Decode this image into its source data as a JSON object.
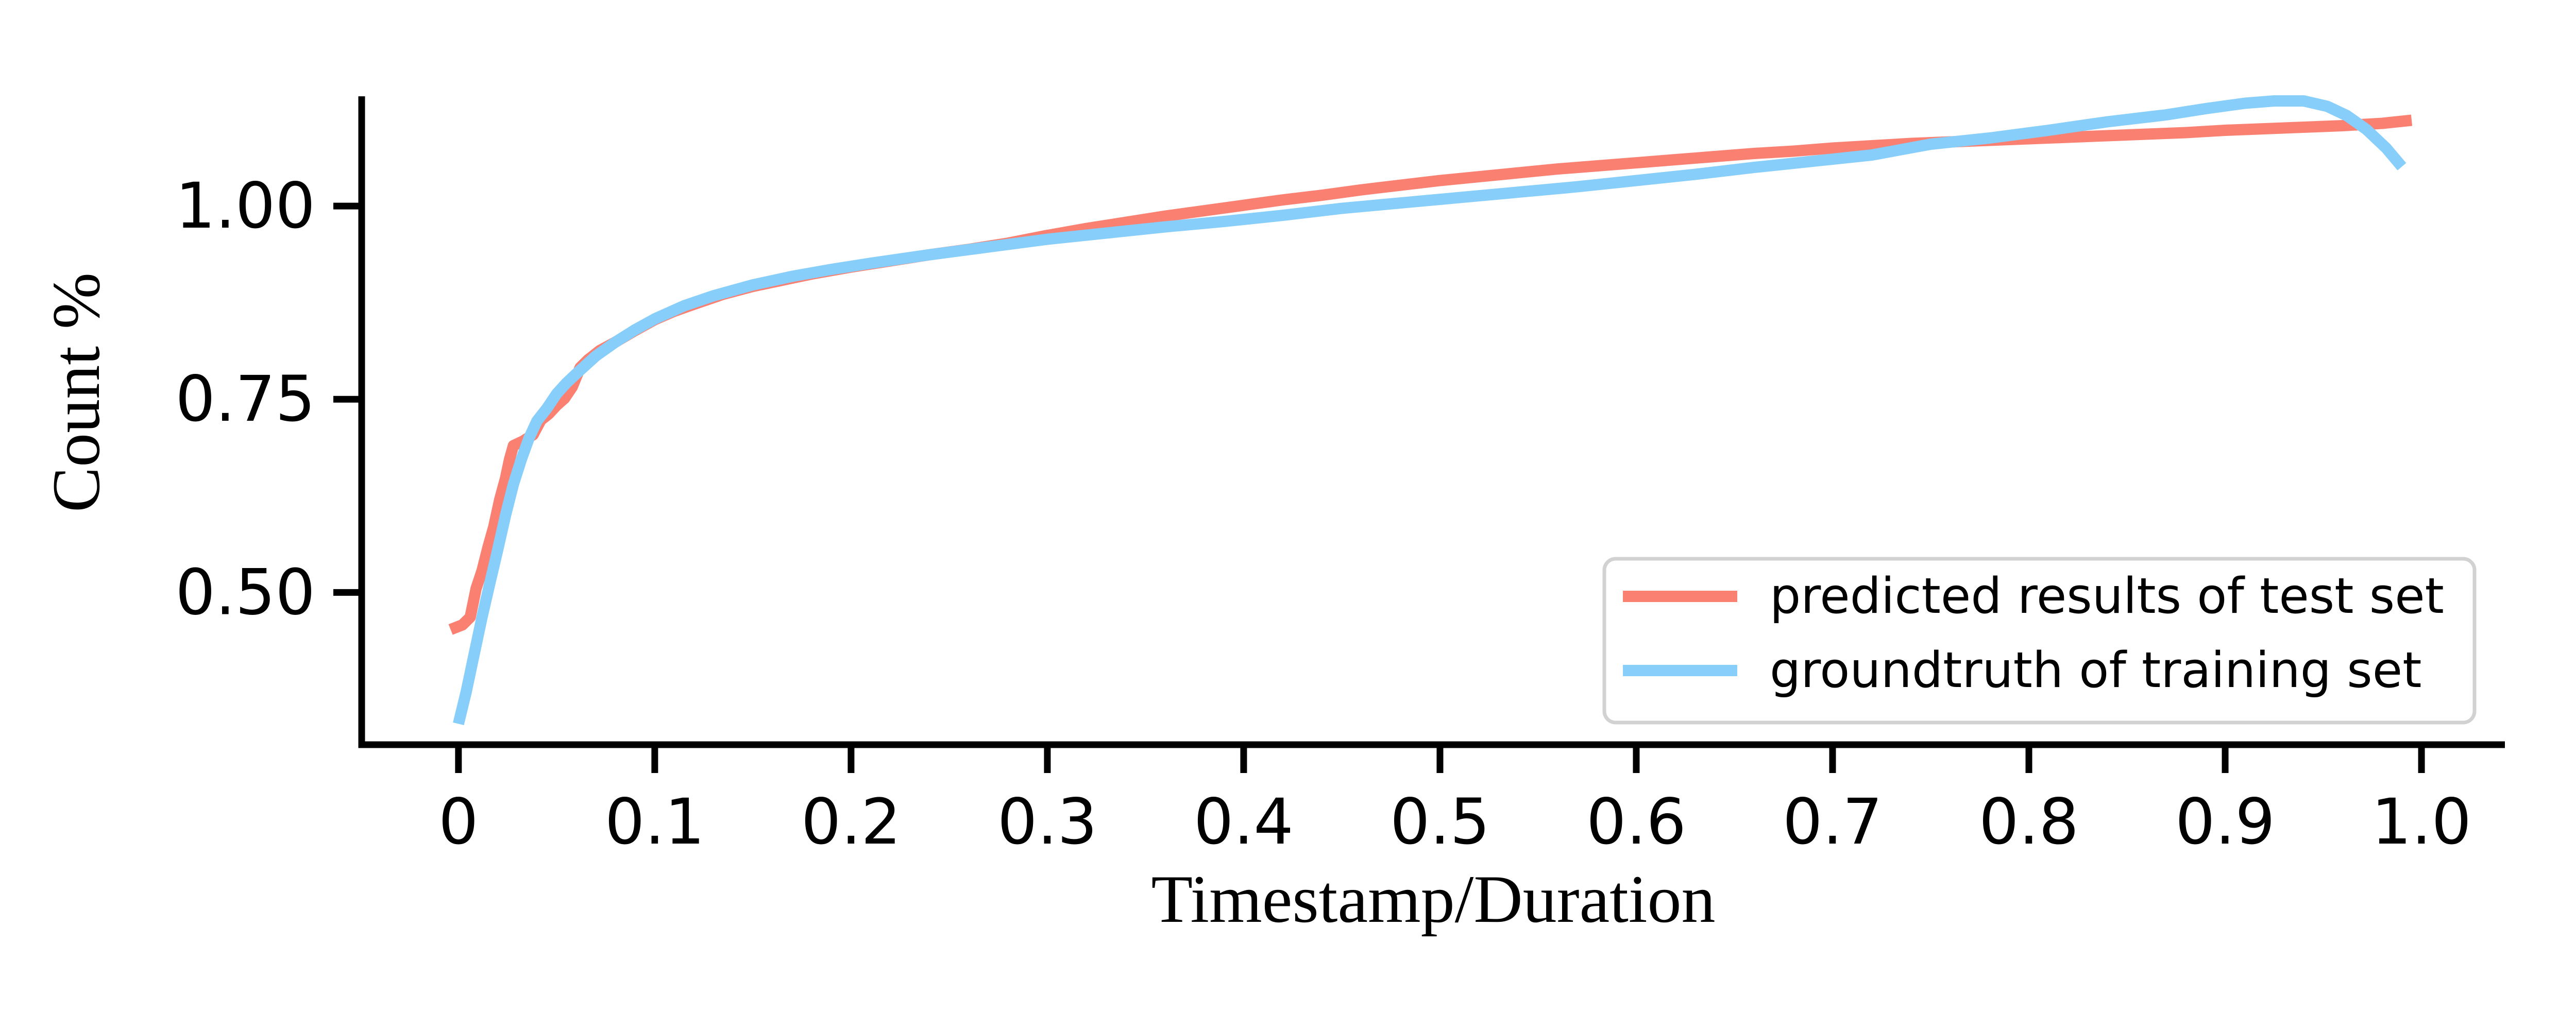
{
  "chart_data": {
    "type": "line",
    "title": "",
    "xlabel": "Timestamp/Duration",
    "ylabel": "Count %",
    "xlim": [
      -0.0493,
      1.0425
    ],
    "ylim": [
      0.303,
      1.142
    ],
    "grid": false,
    "legend_position": "lower right",
    "x_ticks": [
      0,
      0.1,
      0.2,
      0.3,
      0.4,
      0.5,
      0.6,
      0.7,
      0.8,
      0.9,
      1.0
    ],
    "x_tick_labels": [
      "0",
      "0.1",
      "0.2",
      "0.3",
      "0.4",
      "0.5",
      "0.6",
      "0.7",
      "0.8",
      "0.9",
      "1.0"
    ],
    "y_ticks": [
      0.5,
      0.75,
      1.0
    ],
    "y_tick_labels": [
      "0.50",
      "0.75",
      "1.00"
    ],
    "axis_color": "#000000",
    "legend_border_color": "#d2d2d2",
    "legend_background": "#ffffff",
    "series": [
      {
        "name": "predicted results of test set",
        "color": "#fa8072",
        "points": [
          [
            -0.004,
            0.452
          ],
          [
            0.002,
            0.458
          ],
          [
            0.006,
            0.468
          ],
          [
            0.009,
            0.505
          ],
          [
            0.012,
            0.528
          ],
          [
            0.015,
            0.558
          ],
          [
            0.018,
            0.585
          ],
          [
            0.021,
            0.62
          ],
          [
            0.024,
            0.648
          ],
          [
            0.026,
            0.672
          ],
          [
            0.028,
            0.69
          ],
          [
            0.033,
            0.696
          ],
          [
            0.038,
            0.704
          ],
          [
            0.042,
            0.723
          ],
          [
            0.046,
            0.731
          ],
          [
            0.05,
            0.742
          ],
          [
            0.054,
            0.751
          ],
          [
            0.058,
            0.766
          ],
          [
            0.062,
            0.791
          ],
          [
            0.066,
            0.801
          ],
          [
            0.072,
            0.813
          ],
          [
            0.08,
            0.824
          ],
          [
            0.09,
            0.839
          ],
          [
            0.1,
            0.853
          ],
          [
            0.11,
            0.864
          ],
          [
            0.12,
            0.873
          ],
          [
            0.135,
            0.886
          ],
          [
            0.15,
            0.896
          ],
          [
            0.165,
            0.904
          ],
          [
            0.18,
            0.912
          ],
          [
            0.2,
            0.921
          ],
          [
            0.22,
            0.929
          ],
          [
            0.24,
            0.937
          ],
          [
            0.26,
            0.944
          ],
          [
            0.28,
            0.952
          ],
          [
            0.3,
            0.962
          ],
          [
            0.32,
            0.971
          ],
          [
            0.34,
            0.979
          ],
          [
            0.36,
            0.987
          ],
          [
            0.38,
            0.994
          ],
          [
            0.4,
            1.001
          ],
          [
            0.42,
            1.008
          ],
          [
            0.44,
            1.014
          ],
          [
            0.46,
            1.021
          ],
          [
            0.48,
            1.027
          ],
          [
            0.5,
            1.033
          ],
          [
            0.52,
            1.038
          ],
          [
            0.54,
            1.043
          ],
          [
            0.56,
            1.048
          ],
          [
            0.58,
            1.052
          ],
          [
            0.6,
            1.056
          ],
          [
            0.62,
            1.06
          ],
          [
            0.64,
            1.064
          ],
          [
            0.66,
            1.068
          ],
          [
            0.68,
            1.071
          ],
          [
            0.7,
            1.075
          ],
          [
            0.72,
            1.078
          ],
          [
            0.74,
            1.081
          ],
          [
            0.76,
            1.083
          ],
          [
            0.78,
            1.085
          ],
          [
            0.8,
            1.087
          ],
          [
            0.82,
            1.089
          ],
          [
            0.84,
            1.091
          ],
          [
            0.86,
            1.093
          ],
          [
            0.88,
            1.095
          ],
          [
            0.9,
            1.098
          ],
          [
            0.92,
            1.1
          ],
          [
            0.94,
            1.102
          ],
          [
            0.96,
            1.104
          ],
          [
            0.98,
            1.107
          ],
          [
            0.995,
            1.111
          ]
        ]
      },
      {
        "name": "groundtruth of training set",
        "color": "#87cefa",
        "points": [
          [
            0.0,
            0.33
          ],
          [
            0.004,
            0.372
          ],
          [
            0.008,
            0.42
          ],
          [
            0.012,
            0.468
          ],
          [
            0.016,
            0.512
          ],
          [
            0.02,
            0.555
          ],
          [
            0.024,
            0.6
          ],
          [
            0.028,
            0.64
          ],
          [
            0.032,
            0.672
          ],
          [
            0.036,
            0.7
          ],
          [
            0.04,
            0.722
          ],
          [
            0.045,
            0.738
          ],
          [
            0.05,
            0.757
          ],
          [
            0.055,
            0.771
          ],
          [
            0.06,
            0.783
          ],
          [
            0.07,
            0.806
          ],
          [
            0.08,
            0.824
          ],
          [
            0.09,
            0.84
          ],
          [
            0.1,
            0.854
          ],
          [
            0.115,
            0.871
          ],
          [
            0.13,
            0.884
          ],
          [
            0.15,
            0.898
          ],
          [
            0.17,
            0.909
          ],
          [
            0.19,
            0.918
          ],
          [
            0.21,
            0.926
          ],
          [
            0.24,
            0.937
          ],
          [
            0.27,
            0.947
          ],
          [
            0.3,
            0.957
          ],
          [
            0.33,
            0.965
          ],
          [
            0.36,
            0.973
          ],
          [
            0.39,
            0.98
          ],
          [
            0.42,
            0.988
          ],
          [
            0.45,
            0.997
          ],
          [
            0.48,
            1.004
          ],
          [
            0.51,
            1.011
          ],
          [
            0.54,
            1.018
          ],
          [
            0.57,
            1.025
          ],
          [
            0.6,
            1.033
          ],
          [
            0.63,
            1.041
          ],
          [
            0.66,
            1.05
          ],
          [
            0.69,
            1.058
          ],
          [
            0.72,
            1.066
          ],
          [
            0.75,
            1.08
          ],
          [
            0.78,
            1.088
          ],
          [
            0.81,
            1.098
          ],
          [
            0.84,
            1.109
          ],
          [
            0.87,
            1.118
          ],
          [
            0.89,
            1.126
          ],
          [
            0.91,
            1.133
          ],
          [
            0.925,
            1.136
          ],
          [
            0.94,
            1.136
          ],
          [
            0.952,
            1.129
          ],
          [
            0.962,
            1.117
          ],
          [
            0.972,
            1.099
          ],
          [
            0.982,
            1.075
          ],
          [
            0.99,
            1.051
          ]
        ]
      }
    ]
  }
}
